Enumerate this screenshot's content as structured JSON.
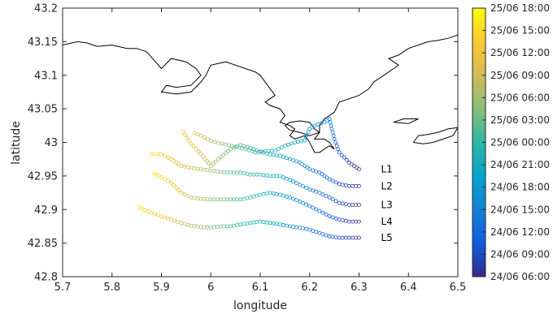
{
  "chart_data": {
    "type": "scatter",
    "xlabel": "longitude",
    "ylabel": "latitude",
    "xlim": [
      5.7,
      6.5
    ],
    "ylim": [
      42.8,
      43.2
    ],
    "xticks": [
      "5.7",
      "5.8",
      "5.9",
      "6",
      "6.1",
      "6.2",
      "6.3",
      "6.4",
      "6.5"
    ],
    "yticks": [
      "42.8",
      "42.85",
      "42.9",
      "42.95",
      "43",
      "43.05",
      "43.1",
      "43.15",
      "43.2"
    ],
    "colorbar": {
      "labels": [
        "25/06 18:00",
        "25/06 15:00",
        "25/06 12:00",
        "25/06 09:00",
        "25/06 06:00",
        "25/06 03:00",
        "25/06 00:00",
        "24/06 21:00",
        "24/06 18:00",
        "24/06 15:00",
        "24/06 12:00",
        "24/06 09:00",
        "24/06 06:00"
      ],
      "colormap": "parula",
      "colors": [
        "#352a87",
        "#0f5cdd",
        "#1481d6",
        "#06a4ca",
        "#2eb7a4",
        "#87bf77",
        "#d1bb59",
        "#fec832",
        "#f9fb0e"
      ]
    },
    "series": [
      {
        "name": "L1",
        "points": [
          [
            6.3,
            42.96
          ],
          [
            6.28,
            42.97
          ],
          [
            6.26,
            42.985
          ],
          [
            6.25,
            43.005
          ],
          [
            6.245,
            43.02
          ],
          [
            6.24,
            43.035
          ],
          [
            6.23,
            43.03
          ],
          [
            6.21,
            43.025
          ],
          [
            6.2,
            43.02
          ],
          [
            6.19,
            43.003
          ],
          [
            6.17,
            43.0
          ],
          [
            6.15,
            42.995
          ],
          [
            6.13,
            42.988
          ],
          [
            6.11,
            42.987
          ],
          [
            6.09,
            42.985
          ],
          [
            6.07,
            42.99
          ],
          [
            6.05,
            42.993
          ],
          [
            6.03,
            42.997
          ],
          [
            6.0,
            43.002
          ],
          [
            5.98,
            43.01
          ],
          [
            5.96,
            43.016
          ]
        ]
      },
      {
        "name": "L2",
        "points": [
          [
            6.3,
            42.935
          ],
          [
            6.28,
            42.935
          ],
          [
            6.26,
            42.938
          ],
          [
            6.24,
            42.945
          ],
          [
            6.22,
            42.955
          ],
          [
            6.2,
            42.96
          ],
          [
            6.18,
            42.97
          ],
          [
            6.16,
            42.975
          ],
          [
            6.14,
            42.98
          ],
          [
            6.12,
            42.982
          ],
          [
            6.1,
            42.986
          ],
          [
            6.08,
            42.992
          ],
          [
            6.06,
            42.996
          ],
          [
            6.04,
            42.99
          ],
          [
            6.02,
            42.978
          ],
          [
            6.0,
            42.965
          ],
          [
            5.98,
            42.983
          ],
          [
            5.96,
            42.998
          ],
          [
            5.94,
            43.02
          ]
        ]
      },
      {
        "name": "L3",
        "points": [
          [
            6.3,
            42.907
          ],
          [
            6.28,
            42.907
          ],
          [
            6.26,
            42.91
          ],
          [
            6.24,
            42.918
          ],
          [
            6.22,
            42.925
          ],
          [
            6.2,
            42.93
          ],
          [
            6.18,
            42.937
          ],
          [
            6.16,
            42.944
          ],
          [
            6.14,
            42.95
          ],
          [
            6.12,
            42.95
          ],
          [
            6.1,
            42.952
          ],
          [
            6.08,
            42.952
          ],
          [
            6.06,
            42.955
          ],
          [
            6.04,
            42.955
          ],
          [
            6.02,
            42.956
          ],
          [
            6.0,
            42.958
          ],
          [
            5.98,
            42.96
          ],
          [
            5.96,
            42.962
          ],
          [
            5.94,
            42.965
          ],
          [
            5.92,
            42.975
          ],
          [
            5.9,
            42.982
          ],
          [
            5.88,
            42.983
          ],
          [
            5.87,
            42.985
          ]
        ]
      },
      {
        "name": "L4",
        "points": [
          [
            6.3,
            42.882
          ],
          [
            6.28,
            42.882
          ],
          [
            6.26,
            42.885
          ],
          [
            6.24,
            42.89
          ],
          [
            6.22,
            42.898
          ],
          [
            6.2,
            42.905
          ],
          [
            6.18,
            42.912
          ],
          [
            6.16,
            42.918
          ],
          [
            6.14,
            42.922
          ],
          [
            6.12,
            42.925
          ],
          [
            6.1,
            42.922
          ],
          [
            6.08,
            42.918
          ],
          [
            6.06,
            42.915
          ],
          [
            6.04,
            42.915
          ],
          [
            6.02,
            42.915
          ],
          [
            6.0,
            42.915
          ],
          [
            5.98,
            42.916
          ],
          [
            5.96,
            42.918
          ],
          [
            5.94,
            42.925
          ],
          [
            5.92,
            42.94
          ],
          [
            5.9,
            42.948
          ],
          [
            5.89,
            42.952
          ],
          [
            5.88,
            42.955
          ]
        ]
      },
      {
        "name": "L5",
        "points": [
          [
            6.3,
            42.858
          ],
          [
            6.28,
            42.858
          ],
          [
            6.26,
            42.858
          ],
          [
            6.24,
            42.86
          ],
          [
            6.22,
            42.865
          ],
          [
            6.2,
            42.87
          ],
          [
            6.18,
            42.873
          ],
          [
            6.16,
            42.875
          ],
          [
            6.14,
            42.878
          ],
          [
            6.12,
            42.88
          ],
          [
            6.1,
            42.882
          ],
          [
            6.08,
            42.88
          ],
          [
            6.06,
            42.878
          ],
          [
            6.04,
            42.875
          ],
          [
            6.02,
            42.875
          ],
          [
            6.0,
            42.873
          ],
          [
            5.98,
            42.874
          ],
          [
            5.96,
            42.876
          ],
          [
            5.94,
            42.88
          ],
          [
            5.92,
            42.885
          ],
          [
            5.9,
            42.89
          ],
          [
            5.88,
            42.895
          ],
          [
            5.86,
            42.902
          ],
          [
            5.85,
            42.905
          ]
        ]
      }
    ],
    "coastline": [
      [
        [
          5.7,
          43.145
        ],
        [
          5.73,
          43.15
        ],
        [
          5.75,
          43.148
        ],
        [
          5.77,
          43.143
        ],
        [
          5.8,
          43.145
        ],
        [
          5.83,
          43.14
        ],
        [
          5.85,
          43.14
        ],
        [
          5.87,
          43.135
        ],
        [
          5.9,
          43.11
        ],
        [
          5.92,
          43.125
        ],
        [
          5.95,
          43.12
        ],
        [
          5.97,
          43.11
        ],
        [
          5.98,
          43.1
        ],
        [
          5.96,
          43.085
        ],
        [
          5.93,
          43.082
        ],
        [
          5.91,
          43.085
        ],
        [
          5.9,
          43.075
        ],
        [
          5.93,
          43.072
        ],
        [
          5.96,
          43.075
        ],
        [
          5.98,
          43.09
        ],
        [
          5.99,
          43.1
        ],
        [
          6.0,
          43.115
        ],
        [
          6.03,
          43.12
        ],
        [
          6.05,
          43.115
        ],
        [
          6.07,
          43.11
        ],
        [
          6.09,
          43.105
        ],
        [
          6.1,
          43.1
        ],
        [
          6.12,
          43.08
        ],
        [
          6.13,
          43.07
        ],
        [
          6.11,
          43.06
        ],
        [
          6.12,
          43.055
        ],
        [
          6.14,
          43.05
        ],
        [
          6.15,
          43.04
        ],
        [
          6.14,
          43.03
        ],
        [
          6.16,
          43.025
        ],
        [
          6.17,
          43.02
        ],
        [
          6.16,
          43.01
        ],
        [
          6.17,
          43.005
        ],
        [
          6.19,
          43.01
        ],
        [
          6.2,
          43.0
        ],
        [
          6.21,
          42.985
        ],
        [
          6.22,
          42.985
        ],
        [
          6.24,
          42.995
        ],
        [
          6.25,
          42.99
        ],
        [
          6.24,
          43.0
        ],
        [
          6.23,
          43.005
        ],
        [
          6.21,
          43.005
        ],
        [
          6.22,
          43.015
        ],
        [
          6.22,
          43.025
        ],
        [
          6.23,
          43.035
        ],
        [
          6.24,
          43.04
        ],
        [
          6.25,
          43.045
        ],
        [
          6.26,
          43.06
        ],
        [
          6.28,
          43.065
        ],
        [
          6.3,
          43.07
        ],
        [
          6.31,
          43.075
        ],
        [
          6.32,
          43.08
        ],
        [
          6.33,
          43.09
        ],
        [
          6.35,
          43.1
        ],
        [
          6.37,
          43.11
        ],
        [
          6.38,
          43.115
        ],
        [
          6.36,
          43.125
        ],
        [
          6.38,
          43.13
        ],
        [
          6.4,
          43.14
        ],
        [
          6.42,
          43.145
        ],
        [
          6.44,
          43.15
        ],
        [
          6.46,
          43.152
        ],
        [
          6.48,
          43.155
        ],
        [
          6.5,
          43.16
        ]
      ],
      [
        [
          6.15,
          43.025
        ],
        [
          6.16,
          43.03
        ],
        [
          6.18,
          43.032
        ],
        [
          6.2,
          43.03
        ],
        [
          6.21,
          43.02
        ],
        [
          6.22,
          43.015
        ],
        [
          6.2,
          43.01
        ],
        [
          6.18,
          43.015
        ],
        [
          6.16,
          43.018
        ],
        [
          6.15,
          43.025
        ]
      ],
      [
        [
          6.41,
          43.0
        ],
        [
          6.42,
          43.01
        ],
        [
          6.44,
          43.012
        ],
        [
          6.46,
          43.015
        ],
        [
          6.48,
          43.02
        ],
        [
          6.5,
          43.022
        ],
        [
          6.49,
          43.01
        ],
        [
          6.47,
          43.005
        ],
        [
          6.45,
          43.0
        ],
        [
          6.43,
          42.998
        ],
        [
          6.41,
          43.0
        ]
      ],
      [
        [
          6.37,
          43.03
        ],
        [
          6.39,
          43.035
        ],
        [
          6.42,
          43.035
        ],
        [
          6.4,
          43.028
        ],
        [
          6.37,
          43.03
        ]
      ]
    ]
  }
}
